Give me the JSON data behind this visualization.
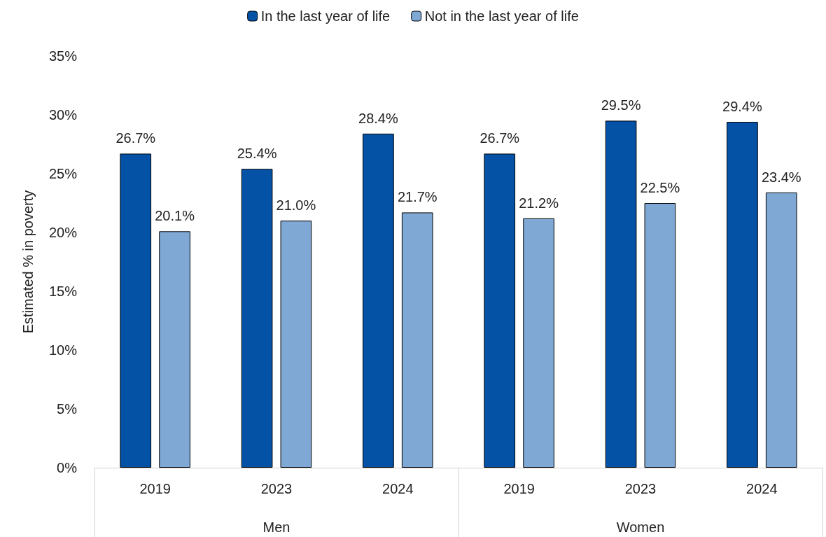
{
  "chart_data": {
    "type": "bar",
    "ylabel": "Estimated % in poverty",
    "categories": [
      "2019",
      "2023",
      "2024",
      "2019",
      "2023",
      "2024"
    ],
    "annotations": [
      "Men",
      "Women"
    ],
    "series": [
      {
        "name": "In the last year of life",
        "color": "#0452a6",
        "values": [
          26.7,
          25.4,
          28.4,
          26.7,
          29.5,
          29.4
        ],
        "value_labels": [
          "26.7%",
          "25.4%",
          "28.4%",
          "26.7%",
          "29.5%",
          "29.4%"
        ]
      },
      {
        "name": "Not in the last year of life",
        "color": "#7fa8d4",
        "values": [
          20.1,
          21.0,
          21.7,
          21.2,
          22.5,
          23.4
        ],
        "value_labels": [
          "20.1%",
          "21.0%",
          "21.7%",
          "21.2%",
          "22.5%",
          "23.4%"
        ]
      }
    ],
    "ylim": [
      0,
      35
    ],
    "yticks": [
      {
        "value": 0,
        "label": "0%"
      },
      {
        "value": 5,
        "label": "5%"
      },
      {
        "value": 10,
        "label": "10%"
      },
      {
        "value": 15,
        "label": "15%"
      },
      {
        "value": 20,
        "label": "20%"
      },
      {
        "value": 25,
        "label": "25%"
      },
      {
        "value": 30,
        "label": "30%"
      },
      {
        "value": 35,
        "label": "35%"
      }
    ],
    "legend": "top",
    "grid": false
  }
}
